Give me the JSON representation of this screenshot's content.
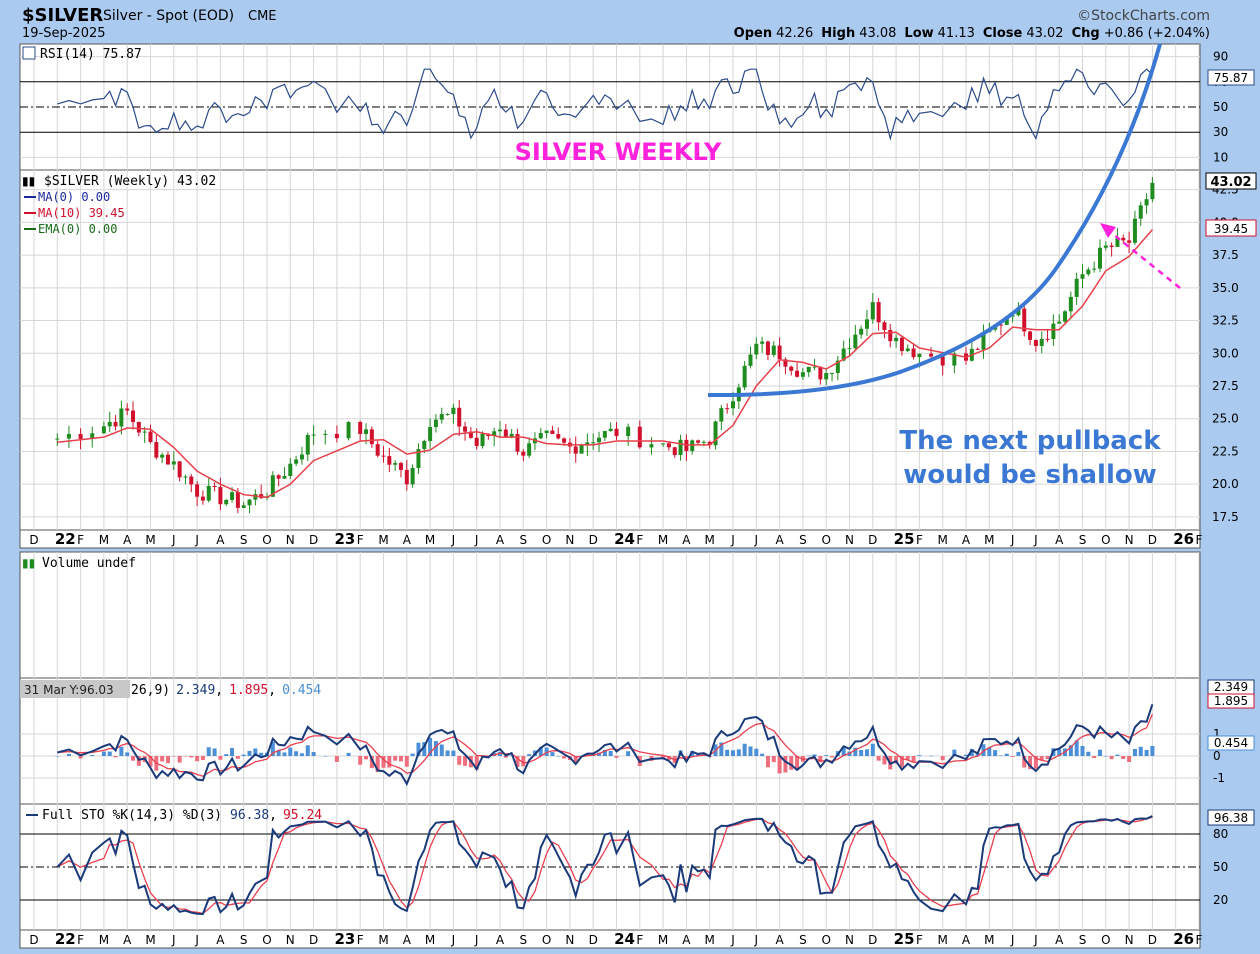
{
  "header": {
    "symbol": "$SILVER",
    "desc": "Silver - Spot (EOD)",
    "exchange": "CME",
    "date": "19-Sep-2025",
    "watermark": "©StockCharts.com",
    "open_label": "Open",
    "open": "42.26",
    "high_label": "High",
    "high": "43.08",
    "low_label": "Low",
    "low": "41.13",
    "close_label": "Close",
    "close": "43.02",
    "chg_label": "Chg",
    "chg": "+0.86 (+2.04%)"
  },
  "colors": {
    "bg": "#aacaf0",
    "panel": "#ffffff",
    "grid": "#d6d6d6",
    "up": "#1e8c1e",
    "down": "#d0102c",
    "ma": "#e8404a",
    "line": "#2b4b8a",
    "histo_up": "#4a8fd8",
    "histo_dn": "#ee6e7e",
    "annot_blue": "#3a78d4",
    "annot_pink": "#ff22dd"
  },
  "rsi_panel": {
    "legend": "RSI(14) 75.87",
    "value_tag": "75.87",
    "ticks": [
      "90",
      "70",
      "50",
      "30",
      "10"
    ]
  },
  "price_panel": {
    "legend": "$SILVER (Weekly) 43.02",
    "ma0": "MA(0) 0.00",
    "ma10": "MA(10) 39.45",
    "ema0": "EMA(0) 0.00",
    "close_tag": "43.02",
    "ma_tag": "39.45",
    "ticks": [
      "42.5",
      "40.0",
      "37.5",
      "35.0",
      "32.5",
      "30.0",
      "27.5",
      "25.0",
      "22.5",
      "20.0",
      "17.5"
    ]
  },
  "volume_panel": {
    "legend": "Volume undef"
  },
  "macd_panel": {
    "tooltip": "31 Mar Y:96.03",
    "legend_params": "26,9)",
    "macd": "2.349",
    "signal": "1.895",
    "hist": "0.454",
    "ticks": [
      "1",
      "0",
      "-1"
    ]
  },
  "sto_panel": {
    "legend": "Full STO %K(14,3) %D(3)",
    "k": "96.38",
    "d": "95.24",
    "value_tag": "96.38",
    "ticks": [
      "80",
      "50",
      "20"
    ]
  },
  "annotations": {
    "title": "SILVER WEEKLY",
    "note_line1": "The next pullback",
    "note_line2": "would be shallow"
  },
  "x_axis_labels": [
    "D",
    "22",
    "F",
    "M",
    "A",
    "M",
    "J",
    "J",
    "A",
    "S",
    "O",
    "N",
    "D",
    "23",
    "F",
    "M",
    "A",
    "M",
    "J",
    "J",
    "A",
    "S",
    "O",
    "N",
    "D",
    "24",
    "F",
    "M",
    "A",
    "M",
    "J",
    "J",
    "A",
    "S",
    "O",
    "N",
    "D",
    "25",
    "F",
    "M",
    "A",
    "M",
    "J",
    "J",
    "A",
    "S",
    "O",
    "N",
    "D",
    "26",
    "F"
  ],
  "chart_data": {
    "type": "line",
    "title": "$SILVER Silver - Spot (EOD) CME",
    "x": [
      "2022-01",
      "2022-03",
      "2022-04",
      "2022-05",
      "2022-06",
      "2022-07",
      "2022-08",
      "2022-09",
      "2022-10",
      "2022-11",
      "2022-12",
      "2023-01",
      "2023-02",
      "2023-03",
      "2023-04",
      "2023-05",
      "2023-06",
      "2023-07",
      "2023-08",
      "2023-09",
      "2023-10",
      "2023-11",
      "2023-12",
      "2024-01",
      "2024-02",
      "2024-03",
      "2024-04",
      "2024-05",
      "2024-06",
      "2024-07",
      "2024-08",
      "2024-09",
      "2024-10",
      "2024-11",
      "2024-12",
      "2025-01",
      "2025-02",
      "2025-03",
      "2025-04",
      "2025-05",
      "2025-06",
      "2025-07",
      "2025-08",
      "2025-09"
    ],
    "series": [
      {
        "name": "$SILVER (Weekly)",
        "values": [
          23.5,
          24.5,
          25.5,
          23.0,
          21.5,
          19.5,
          19.0,
          18.5,
          19.5,
          21.5,
          24.0,
          24.2,
          22.0,
          20.5,
          25.0,
          25.2,
          23.0,
          24.5,
          22.5,
          23.5,
          22.8,
          23.6,
          24.0,
          23.0,
          22.6,
          23.5,
          27.0,
          30.5,
          30.0,
          28.5,
          28.5,
          31.0,
          33.5,
          31.0,
          30.0,
          29.5,
          31.5,
          33.5,
          31.0,
          32.5,
          36.0,
          38.0,
          38.5,
          43.02
        ]
      },
      {
        "name": "MA(10)",
        "values": [
          23.2,
          23.6,
          24.3,
          24.2,
          22.8,
          21.0,
          20.0,
          19.2,
          19.0,
          20.0,
          21.8,
          23.3,
          23.4,
          22.3,
          22.6,
          23.8,
          24.0,
          23.6,
          23.6,
          23.1,
          23.0,
          23.0,
          23.3,
          23.3,
          23.0,
          23.0,
          24.5,
          27.5,
          29.5,
          29.3,
          28.8,
          29.8,
          31.5,
          31.6,
          30.4,
          29.7,
          30.4,
          32.0,
          31.8,
          31.8,
          33.6,
          36.3,
          37.4,
          39.45
        ]
      }
    ],
    "ylim": [
      16.5,
      44
    ],
    "panels": {
      "rsi": {
        "last": 75.87,
        "levels": [
          70,
          50,
          30
        ]
      },
      "macd": {
        "params": "(12,26,9)",
        "macd": 2.349,
        "signal": 1.895,
        "histogram": 0.454
      },
      "stochastic": {
        "k": 96.38,
        "d": 95.24,
        "levels": [
          80,
          50,
          20
        ]
      }
    }
  }
}
